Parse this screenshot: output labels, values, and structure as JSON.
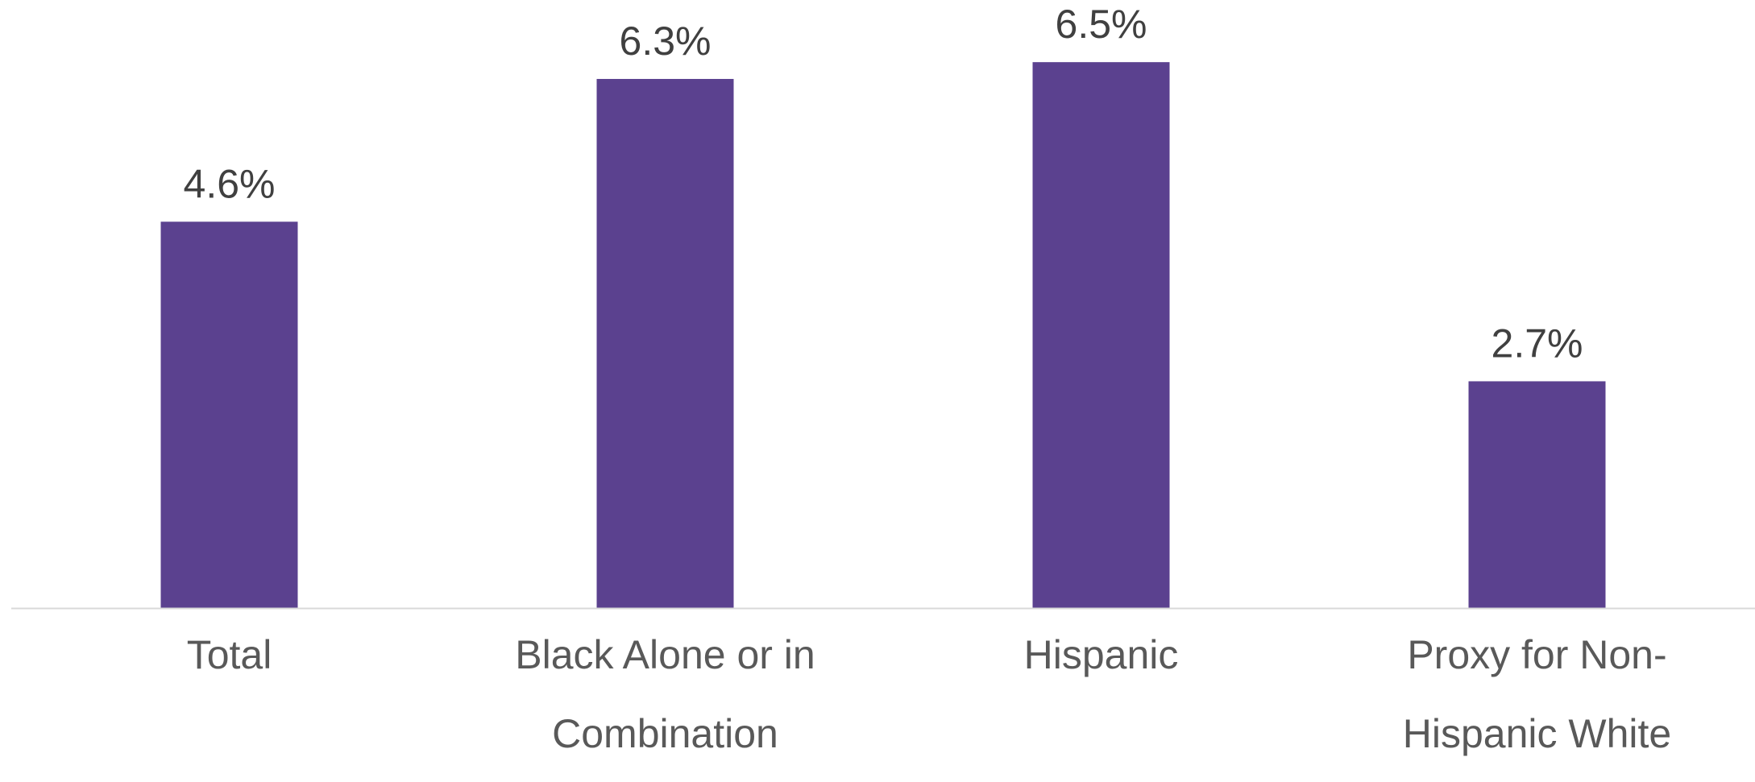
{
  "chart_data": {
    "type": "bar",
    "categories": [
      [
        "Total"
      ],
      [
        "Black Alone or in",
        "Combination"
      ],
      [
        "Hispanic"
      ],
      [
        "Proxy for Non-",
        "Hispanic White"
      ]
    ],
    "values": [
      4.6,
      6.3,
      6.5,
      2.7
    ],
    "data_labels": [
      "4.6%",
      "6.3%",
      "6.5%",
      "2.7%"
    ],
    "ylim": [
      0,
      7.24
    ],
    "title": "",
    "xlabel": "",
    "ylabel": "",
    "grid": false,
    "legend": "none"
  },
  "colors": {
    "bar": "#5b418f",
    "axis_line": "#d9d9d9",
    "data_label": "#404040",
    "category_label": "#595959"
  }
}
